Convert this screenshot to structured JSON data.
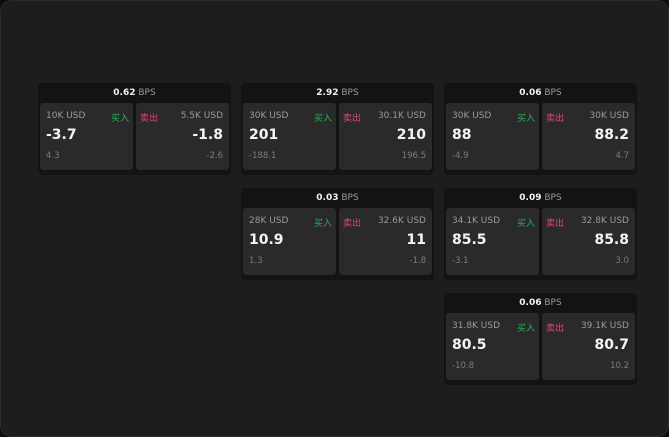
{
  "unit": "BPS",
  "buy_label": "买入",
  "sell_label": "卖出",
  "colors": {
    "buy": "#2fae5a",
    "sell": "#e0457a",
    "background": "#1d1d1d"
  },
  "panels": [
    {
      "spread": "0.62",
      "buy": {
        "size": "10K USD",
        "price": "-3.7",
        "change": "4.3"
      },
      "sell": {
        "size": "5.5K USD",
        "price": "-1.8",
        "change": "-2.6"
      }
    },
    {
      "spread": "2.92",
      "buy": {
        "size": "30K USD",
        "price": "201",
        "change": "-188.1"
      },
      "sell": {
        "size": "30.1K USD",
        "price": "210",
        "change": "196.5"
      }
    },
    {
      "spread": "0.06",
      "buy": {
        "size": "30K USD",
        "price": "88",
        "change": "-4.9"
      },
      "sell": {
        "size": "30K USD",
        "price": "88.2",
        "change": "4.7"
      }
    },
    {
      "spread": "0.03",
      "buy": {
        "size": "28K USD",
        "price": "10.9",
        "change": "1.3"
      },
      "sell": {
        "size": "32.6K USD",
        "price": "11",
        "change": "-1.8"
      }
    },
    {
      "spread": "0.09",
      "buy": {
        "size": "34.1K USD",
        "price": "85.5",
        "change": "-3.1"
      },
      "sell": {
        "size": "32.8K USD",
        "price": "85.8",
        "change": "3.0"
      }
    },
    {
      "spread": "0.06",
      "buy": {
        "size": "31.8K USD",
        "price": "80.5",
        "change": "-10.8"
      },
      "sell": {
        "size": "39.1K USD",
        "price": "80.7",
        "change": "10.2"
      }
    }
  ]
}
